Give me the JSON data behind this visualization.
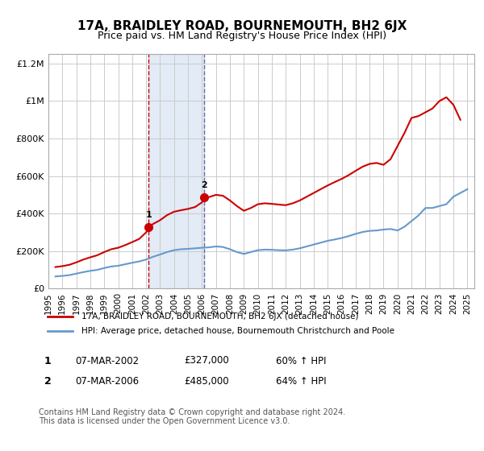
{
  "title": "17A, BRAIDLEY ROAD, BOURNEMOUTH, BH2 6JX",
  "subtitle": "Price paid vs. HM Land Registry's House Price Index (HPI)",
  "title_fontsize": 11,
  "subtitle_fontsize": 9,
  "bg_color": "#ffffff",
  "plot_bg_color": "#ffffff",
  "grid_color": "#cccccc",
  "hpi_years": [
    1995.5,
    1996.0,
    1996.5,
    1997.0,
    1997.5,
    1998.0,
    1998.5,
    1999.0,
    1999.5,
    2000.0,
    2000.5,
    2001.0,
    2001.5,
    2002.0,
    2002.5,
    2003.0,
    2003.5,
    2004.0,
    2004.5,
    2005.0,
    2005.5,
    2006.0,
    2006.5,
    2007.0,
    2007.5,
    2008.0,
    2008.5,
    2009.0,
    2009.5,
    2010.0,
    2010.5,
    2011.0,
    2011.5,
    2012.0,
    2012.5,
    2013.0,
    2013.5,
    2014.0,
    2014.5,
    2015.0,
    2015.5,
    2016.0,
    2016.5,
    2017.0,
    2017.5,
    2018.0,
    2018.5,
    2019.0,
    2019.5,
    2020.0,
    2020.5,
    2021.0,
    2021.5,
    2022.0,
    2022.5,
    2023.0,
    2023.5,
    2024.0,
    2024.5,
    2025.0
  ],
  "hpi_values": [
    65000,
    68000,
    72000,
    80000,
    88000,
    95000,
    100000,
    110000,
    118000,
    122000,
    130000,
    138000,
    145000,
    155000,
    170000,
    182000,
    195000,
    205000,
    210000,
    212000,
    215000,
    218000,
    220000,
    225000,
    222000,
    210000,
    195000,
    185000,
    195000,
    205000,
    208000,
    207000,
    205000,
    204000,
    208000,
    215000,
    225000,
    235000,
    245000,
    255000,
    262000,
    270000,
    280000,
    292000,
    302000,
    308000,
    310000,
    315000,
    318000,
    310000,
    330000,
    360000,
    390000,
    430000,
    430000,
    440000,
    450000,
    490000,
    510000,
    530000
  ],
  "red_years": [
    1995.5,
    1996.0,
    1996.5,
    1997.0,
    1997.5,
    1998.0,
    1998.5,
    1999.0,
    1999.5,
    2000.0,
    2000.5,
    2001.0,
    2001.5,
    2002.0,
    2002.2,
    2002.5,
    2003.0,
    2003.5,
    2004.0,
    2004.5,
    2005.0,
    2005.5,
    2006.0,
    2006.2,
    2006.5,
    2007.0,
    2007.5,
    2008.0,
    2008.5,
    2009.0,
    2009.5,
    2010.0,
    2010.5,
    2011.0,
    2011.5,
    2012.0,
    2012.5,
    2013.0,
    2013.5,
    2014.0,
    2014.5,
    2015.0,
    2015.5,
    2016.0,
    2016.5,
    2017.0,
    2017.5,
    2018.0,
    2018.5,
    2019.0,
    2019.5,
    2020.0,
    2020.5,
    2021.0,
    2021.5,
    2022.0,
    2022.5,
    2023.0,
    2023.5,
    2024.0,
    2024.5
  ],
  "red_values": [
    115000,
    120000,
    127000,
    140000,
    155000,
    167000,
    178000,
    195000,
    210000,
    218000,
    232000,
    248000,
    265000,
    300000,
    327000,
    345000,
    365000,
    392000,
    410000,
    418000,
    425000,
    435000,
    460000,
    485000,
    488000,
    500000,
    495000,
    470000,
    440000,
    415000,
    430000,
    450000,
    455000,
    452000,
    448000,
    445000,
    455000,
    470000,
    490000,
    510000,
    530000,
    550000,
    568000,
    585000,
    605000,
    628000,
    650000,
    665000,
    670000,
    660000,
    690000,
    760000,
    830000,
    910000,
    920000,
    940000,
    960000,
    1000000,
    1020000,
    980000,
    900000
  ],
  "sale1_year": 2002.17,
  "sale1_value": 327000,
  "sale1_label": "1",
  "sale2_year": 2006.17,
  "sale2_value": 485000,
  "sale2_label": "2",
  "shade_color": "#aec6e8",
  "shade_alpha": 0.35,
  "vline1_color": "#cc0000",
  "vline2_color": "#6666bb",
  "ylim": [
    0,
    1250000
  ],
  "xlim_left": 1995.0,
  "xlim_right": 2025.5,
  "ytick_labels": [
    "£0",
    "£200K",
    "£400K",
    "£600K",
    "£800K",
    "£1M",
    "£1.2M"
  ],
  "ytick_values": [
    0,
    200000,
    400000,
    600000,
    800000,
    1000000,
    1200000
  ],
  "xtick_labels": [
    "1995",
    "1996",
    "1997",
    "1998",
    "1999",
    "2000",
    "2001",
    "2002",
    "2003",
    "2004",
    "2005",
    "2006",
    "2007",
    "2008",
    "2009",
    "2010",
    "2011",
    "2012",
    "2013",
    "2014",
    "2015",
    "2016",
    "2017",
    "2018",
    "2019",
    "2020",
    "2021",
    "2022",
    "2023",
    "2024",
    "2025"
  ],
  "xtick_values": [
    1995,
    1996,
    1997,
    1998,
    1999,
    2000,
    2001,
    2002,
    2003,
    2004,
    2005,
    2006,
    2007,
    2008,
    2009,
    2010,
    2011,
    2012,
    2013,
    2014,
    2015,
    2016,
    2017,
    2018,
    2019,
    2020,
    2021,
    2022,
    2023,
    2024,
    2025
  ],
  "legend_red_label": "17A, BRAIDLEY ROAD, BOURNEMOUTH, BH2 6JX (detached house)",
  "legend_blue_label": "HPI: Average price, detached house, Bournemouth Christchurch and Poole",
  "table_row1": [
    "1",
    "07-MAR-2002",
    "£327,000",
    "60% ↑ HPI"
  ],
  "table_row2": [
    "2",
    "07-MAR-2006",
    "£485,000",
    "64% ↑ HPI"
  ],
  "footer": "Contains HM Land Registry data © Crown copyright and database right 2024.\nThis data is licensed under the Open Government Licence v3.0.",
  "red_line_color": "#cc0000",
  "blue_line_color": "#6699cc"
}
